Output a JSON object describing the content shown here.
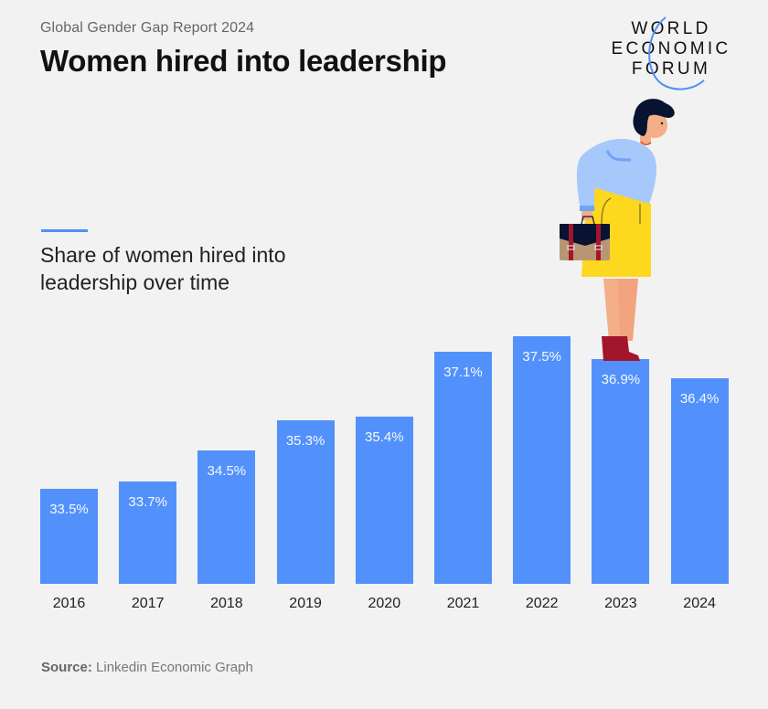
{
  "header": {
    "report": "Global Gender Gap Report 2024",
    "title": "Women hired into leadership"
  },
  "logo": {
    "lines": [
      "WORLD",
      "ECONOMIC",
      "FORUM"
    ]
  },
  "chart_desc": {
    "line1": "Share of women hired into",
    "line2": "leadership over time"
  },
  "colors": {
    "bar": "#5291fb",
    "accent": "#4f8ff7",
    "background": "#f2f2f2"
  },
  "footer": {
    "source_label": "Source:",
    "source_text": " Linkedin Economic Graph"
  },
  "chart_data": {
    "type": "bar",
    "title": "Women hired into leadership",
    "subtitle": "Share of women hired into leadership over time",
    "categories": [
      "2016",
      "2017",
      "2018",
      "2019",
      "2020",
      "2021",
      "2022",
      "2023",
      "2024"
    ],
    "values": [
      33.5,
      33.7,
      34.5,
      35.3,
      35.4,
      37.1,
      37.5,
      36.9,
      36.4
    ],
    "value_labels": [
      "33.5%",
      "33.7%",
      "34.5%",
      "35.3%",
      "35.4%",
      "37.1%",
      "37.5%",
      "36.9%",
      "36.4%"
    ],
    "xlabel": "",
    "ylabel": "",
    "unit": "%",
    "grid": false,
    "legend": false,
    "source": "Linkedin Economic Graph"
  }
}
